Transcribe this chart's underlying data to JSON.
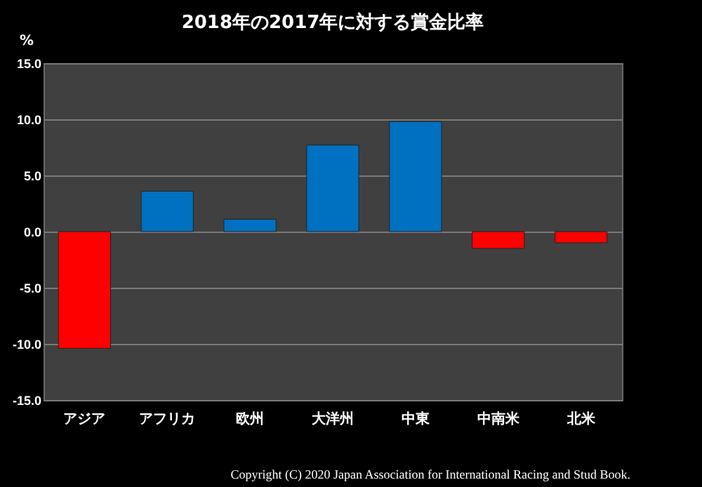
{
  "chart_data": {
    "type": "bar",
    "title": "2018年の2017年に対する賞金比率",
    "ylabel": "%",
    "categories": [
      "アジア",
      "アフリカ",
      "欧州",
      "大洋州",
      "中東",
      "中南米",
      "北米"
    ],
    "values": [
      -10.4,
      3.6,
      1.1,
      7.7,
      9.8,
      -1.5,
      -1.0
    ],
    "colors": [
      "#ff0000",
      "#0070c0",
      "#0070c0",
      "#0070c0",
      "#0070c0",
      "#ff0000",
      "#ff0000"
    ],
    "ylim": [
      -15,
      15
    ],
    "yticks": [
      {
        "value": -15,
        "label": "-15.0"
      },
      {
        "value": -10,
        "label": "-10.0"
      },
      {
        "value": -5,
        "label": "-5.0"
      },
      {
        "value": 0,
        "label": "0.0"
      },
      {
        "value": 5,
        "label": "5.0"
      },
      {
        "value": 10,
        "label": "10.0"
      },
      {
        "value": 15,
        "label": "15.0"
      }
    ],
    "grid": "y",
    "annotations": [
      "Copyright (C) 2020 Japan Association for International Racing and Stud Book."
    ]
  }
}
